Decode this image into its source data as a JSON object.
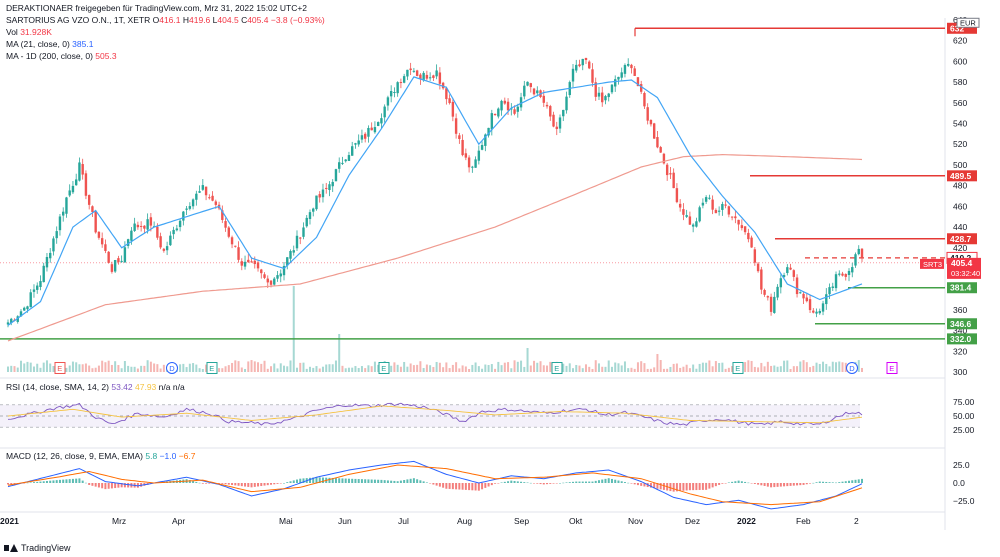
{
  "header": {
    "publisher": "DERAKTIONAER freigegeben für TradingView.com, Mrz 31, 2022 15:02 UTC+2",
    "symbol": "SARTORIUS AG VZO O.N., 1T, XETR",
    "ohlc": {
      "o_label": "O",
      "o": "416.1",
      "h_label": "H",
      "h": "419.6",
      "l_label": "L",
      "l": "404.5",
      "c_label": "C",
      "c": "405.4",
      "chg": "−3.8 (−0.93%)"
    },
    "vol_label": "Vol",
    "vol": "31.928K",
    "ma21_label": "MA (21, close, 0)",
    "ma21": "385.1",
    "ma200_label": "MA - 1D (200, close, 0)",
    "ma200": "505.3"
  },
  "rsi_label": {
    "name": "RSI (14, close, SMA, 14, 2)",
    "v1": "53.42",
    "v2": "47.93",
    "v3": "n/a",
    "v4": "n/a"
  },
  "macd_label": {
    "name": "MACD (12, 26, close, 9, EMA, EMA)",
    "v1": "5.8",
    "v2": "−1.0",
    "v3": "−6.7"
  },
  "footer": {
    "brand": "TradingView"
  },
  "colors": {
    "up": "#26a69a",
    "down": "#ef5350",
    "ma21": "#42a5f5",
    "ma200": "#ef9a8f",
    "red_line": "#e53935",
    "green_line": "#43a047",
    "rsi": "#7e57c2",
    "rsi_ma": "#f5c342",
    "macd": "#2962ff",
    "signal": "#ff6d00"
  },
  "chart_data": [
    {
      "type": "line",
      "name": "price",
      "currency": "EUR",
      "ylim": [
        300,
        640
      ],
      "yticks": [
        300,
        320,
        340,
        360,
        380,
        400,
        420,
        440,
        460,
        480,
        500,
        520,
        540,
        560,
        580,
        600,
        620,
        640
      ],
      "x_tick_labels": [
        "2021",
        "Mrz",
        "Apr",
        "Mai",
        "Jun",
        "Jul",
        "Aug",
        "Sep",
        "Okt",
        "Nov",
        "Dez",
        "2022",
        "Feb",
        "2",
        "Apr"
      ],
      "close_anchors": [
        [
          0,
          348
        ],
        [
          5,
          362
        ],
        [
          10,
          390
        ],
        [
          18,
          468
        ],
        [
          22,
          498
        ],
        [
          27,
          438
        ],
        [
          32,
          400
        ],
        [
          35,
          410
        ],
        [
          38,
          440
        ],
        [
          44,
          444
        ],
        [
          48,
          416
        ],
        [
          55,
          462
        ],
        [
          60,
          476
        ],
        [
          64,
          462
        ],
        [
          67,
          440
        ],
        [
          72,
          405
        ],
        [
          76,
          400
        ],
        [
          80,
          386
        ],
        [
          84,
          398
        ],
        [
          88,
          420
        ],
        [
          94,
          462
        ],
        [
          98,
          476
        ],
        [
          104,
          510
        ],
        [
          110,
          528
        ],
        [
          115,
          550
        ],
        [
          120,
          580
        ],
        [
          124,
          596
        ],
        [
          127,
          585
        ],
        [
          132,
          590
        ],
        [
          136,
          560
        ],
        [
          140,
          510
        ],
        [
          143,
          494
        ],
        [
          148,
          540
        ],
        [
          152,
          565
        ],
        [
          156,
          550
        ],
        [
          160,
          580
        ],
        [
          165,
          560
        ],
        [
          169,
          530
        ],
        [
          174,
          590
        ],
        [
          178,
          600
        ],
        [
          181,
          570
        ],
        [
          183,
          560
        ],
        [
          186,
          575
        ],
        [
          189,
          590
        ],
        [
          192,
          598
        ],
        [
          196,
          555
        ],
        [
          200,
          520
        ],
        [
          203,
          495
        ],
        [
          207,
          460
        ],
        [
          211,
          440
        ],
        [
          215,
          470
        ],
        [
          218,
          455
        ],
        [
          221,
          460
        ],
        [
          225,
          445
        ],
        [
          229,
          425
        ],
        [
          232,
          380
        ],
        [
          235,
          362
        ],
        [
          237,
          385
        ],
        [
          240,
          405
        ],
        [
          243,
          380
        ],
        [
          246,
          370
        ],
        [
          248,
          355
        ],
        [
          251,
          365
        ],
        [
          255,
          390
        ],
        [
          258,
          396
        ],
        [
          260,
          405
        ],
        [
          262,
          418
        ],
        [
          263,
          405.4
        ]
      ],
      "ma21_anchors": [
        [
          0,
          345
        ],
        [
          10,
          368
        ],
        [
          20,
          440
        ],
        [
          27,
          456
        ],
        [
          35,
          420
        ],
        [
          45,
          440
        ],
        [
          55,
          450
        ],
        [
          65,
          460
        ],
        [
          75,
          410
        ],
        [
          85,
          400
        ],
        [
          95,
          430
        ],
        [
          105,
          490
        ],
        [
          115,
          535
        ],
        [
          125,
          585
        ],
        [
          135,
          575
        ],
        [
          145,
          520
        ],
        [
          155,
          555
        ],
        [
          165,
          570
        ],
        [
          175,
          575
        ],
        [
          185,
          580
        ],
        [
          192,
          582
        ],
        [
          200,
          565
        ],
        [
          210,
          510
        ],
        [
          220,
          470
        ],
        [
          230,
          435
        ],
        [
          240,
          385
        ],
        [
          250,
          370
        ],
        [
          257,
          378
        ],
        [
          263,
          385.1
        ]
      ],
      "ma200_anchors": [
        [
          0,
          330
        ],
        [
          30,
          365
        ],
        [
          60,
          378
        ],
        [
          90,
          385
        ],
        [
          120,
          410
        ],
        [
          150,
          440
        ],
        [
          175,
          472
        ],
        [
          195,
          498
        ],
        [
          208,
          508
        ],
        [
          220,
          510
        ],
        [
          240,
          508
        ],
        [
          263,
          505.3
        ]
      ],
      "levels": [
        {
          "value": "632",
          "label": "632"
        },
        {
          "value": "489.5",
          "label": "489.5"
        },
        {
          "value": "428.7",
          "label": "428.7"
        },
        {
          "value": "410.2",
          "label": "410.2"
        },
        {
          "value": "405.4",
          "label": "405.4",
          "sublabel": "03:32:40",
          "tag": "SRT3"
        },
        {
          "value": "381.4",
          "label": "381.4"
        },
        {
          "value": "346.6",
          "label": "346.6"
        },
        {
          "value": "332.0",
          "label": "332.0"
        }
      ],
      "event_markers": [
        "E",
        "D",
        "E",
        "E",
        "E",
        "D",
        "E",
        "E",
        "D",
        "E"
      ]
    },
    {
      "type": "line",
      "name": "RSI",
      "ylim": [
        0,
        100
      ],
      "yticks": [
        25.0,
        50.0,
        75.0
      ],
      "bands": [
        30,
        50,
        70
      ],
      "rsi_anchors": [
        [
          0,
          45
        ],
        [
          8,
          55
        ],
        [
          15,
          65
        ],
        [
          22,
          70
        ],
        [
          27,
          48
        ],
        [
          32,
          35
        ],
        [
          40,
          55
        ],
        [
          48,
          48
        ],
        [
          55,
          62
        ],
        [
          62,
          55
        ],
        [
          68,
          40
        ],
        [
          74,
          38
        ],
        [
          80,
          35
        ],
        [
          88,
          45
        ],
        [
          95,
          60
        ],
        [
          104,
          70
        ],
        [
          112,
          68
        ],
        [
          120,
          72
        ],
        [
          128,
          66
        ],
        [
          134,
          55
        ],
        [
          140,
          40
        ],
        [
          146,
          58
        ],
        [
          154,
          62
        ],
        [
          160,
          58
        ],
        [
          166,
          55
        ],
        [
          172,
          60
        ],
        [
          178,
          62
        ],
        [
          184,
          52
        ],
        [
          190,
          56
        ],
        [
          196,
          48
        ],
        [
          202,
          38
        ],
        [
          208,
          34
        ],
        [
          214,
          42
        ],
        [
          220,
          45
        ],
        [
          226,
          38
        ],
        [
          232,
          34
        ],
        [
          238,
          40
        ],
        [
          244,
          36
        ],
        [
          250,
          35
        ],
        [
          256,
          50
        ],
        [
          260,
          58
        ],
        [
          263,
          53.42
        ]
      ],
      "rsi_ma_anchors": [
        [
          0,
          50
        ],
        [
          20,
          62
        ],
        [
          35,
          48
        ],
        [
          55,
          55
        ],
        [
          75,
          42
        ],
        [
          95,
          52
        ],
        [
          115,
          68
        ],
        [
          135,
          60
        ],
        [
          150,
          52
        ],
        [
          170,
          58
        ],
        [
          190,
          55
        ],
        [
          210,
          42
        ],
        [
          230,
          40
        ],
        [
          250,
          38
        ],
        [
          263,
          47.93
        ]
      ]
    },
    {
      "type": "bar",
      "name": "MACD",
      "ylim": [
        -37.5,
        37.5
      ],
      "yticks": [
        -25.0,
        0.0,
        25.0
      ],
      "macd_anchors": [
        [
          0,
          -5
        ],
        [
          15,
          12
        ],
        [
          22,
          20
        ],
        [
          30,
          2
        ],
        [
          40,
          -4
        ],
        [
          55,
          8
        ],
        [
          65,
          -2
        ],
        [
          75,
          -18
        ],
        [
          85,
          -8
        ],
        [
          95,
          8
        ],
        [
          105,
          18
        ],
        [
          115,
          25
        ],
        [
          125,
          30
        ],
        [
          135,
          12
        ],
        [
          145,
          0
        ],
        [
          155,
          10
        ],
        [
          165,
          6
        ],
        [
          175,
          14
        ],
        [
          185,
          18
        ],
        [
          195,
          2
        ],
        [
          205,
          -20
        ],
        [
          215,
          -30
        ],
        [
          225,
          -24
        ],
        [
          235,
          -36
        ],
        [
          245,
          -30
        ],
        [
          255,
          -18
        ],
        [
          263,
          -1.0
        ]
      ],
      "signal_anchors": [
        [
          0,
          -3
        ],
        [
          15,
          8
        ],
        [
          25,
          16
        ],
        [
          35,
          5
        ],
        [
          45,
          0
        ],
        [
          60,
          4
        ],
        [
          75,
          -12
        ],
        [
          90,
          -6
        ],
        [
          105,
          12
        ],
        [
          120,
          25
        ],
        [
          135,
          20
        ],
        [
          150,
          6
        ],
        [
          165,
          8
        ],
        [
          180,
          14
        ],
        [
          195,
          6
        ],
        [
          210,
          -15
        ],
        [
          220,
          -26
        ],
        [
          235,
          -30
        ],
        [
          250,
          -26
        ],
        [
          263,
          -6.7
        ]
      ],
      "hist_value": 5.8
    }
  ]
}
